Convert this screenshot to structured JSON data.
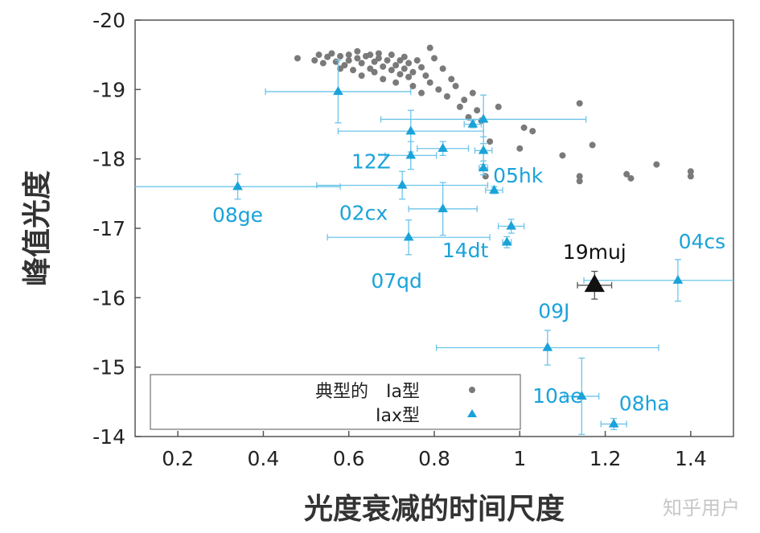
{
  "chart_data": {
    "type": "scatter",
    "xlabel": "光度衰减的时间尺度",
    "ylabel": "峰值光度",
    "xlim": [
      0.1,
      1.5
    ],
    "ylim": [
      -14,
      -20
    ],
    "y_axis_inverted": true,
    "x_ticks": [
      {
        "value": 0.2,
        "label": "0.2"
      },
      {
        "value": 0.4,
        "label": "0.4"
      },
      {
        "value": 0.6,
        "label": "0.6"
      },
      {
        "value": 0.8,
        "label": "0.8"
      },
      {
        "value": 1.0,
        "label": "1"
      },
      {
        "value": 1.2,
        "label": "1.2"
      },
      {
        "value": 1.4,
        "label": "1.4"
      }
    ],
    "y_ticks": [
      {
        "value": -20,
        "label": "-20"
      },
      {
        "value": -19,
        "label": "-19"
      },
      {
        "value": -18,
        "label": "-18"
      },
      {
        "value": -17,
        "label": "-17"
      },
      {
        "value": -16,
        "label": "-16"
      },
      {
        "value": -15,
        "label": "-15"
      },
      {
        "value": -14,
        "label": "-14"
      }
    ],
    "grid": false,
    "legend": {
      "placement": "bottom-left",
      "entries": [
        {
          "label": "典型的　Ia型",
          "marker": "dot",
          "color": "#7a7a7a"
        },
        {
          "label": "Iax型",
          "marker": "triangle",
          "color": "#1aa3d9"
        }
      ]
    },
    "series": [
      {
        "name": "典型的　Ia型",
        "marker": "dot",
        "color": "#7a7a7a",
        "points": [
          [
            0.48,
            -19.45
          ],
          [
            0.52,
            -19.42
          ],
          [
            0.53,
            -19.5
          ],
          [
            0.54,
            -19.38
          ],
          [
            0.55,
            -19.47
          ],
          [
            0.56,
            -19.52
          ],
          [
            0.57,
            -19.4
          ],
          [
            0.58,
            -19.3
          ],
          [
            0.58,
            -19.48
          ],
          [
            0.59,
            -19.35
          ],
          [
            0.6,
            -19.5
          ],
          [
            0.6,
            -19.42
          ],
          [
            0.61,
            -19.28
          ],
          [
            0.62,
            -19.45
          ],
          [
            0.62,
            -19.55
          ],
          [
            0.63,
            -19.38
          ],
          [
            0.63,
            -19.2
          ],
          [
            0.64,
            -19.48
          ],
          [
            0.65,
            -19.3
          ],
          [
            0.65,
            -19.5
          ],
          [
            0.66,
            -19.4
          ],
          [
            0.66,
            -19.25
          ],
          [
            0.67,
            -19.45
          ],
          [
            0.67,
            -19.52
          ],
          [
            0.68,
            -19.33
          ],
          [
            0.68,
            -19.15
          ],
          [
            0.69,
            -19.42
          ],
          [
            0.7,
            -19.28
          ],
          [
            0.7,
            -19.5
          ],
          [
            0.71,
            -19.35
          ],
          [
            0.71,
            -19.1
          ],
          [
            0.72,
            -19.42
          ],
          [
            0.72,
            -19.22
          ],
          [
            0.73,
            -19.3
          ],
          [
            0.73,
            -19.47
          ],
          [
            0.74,
            -19.18
          ],
          [
            0.74,
            -19.38
          ],
          [
            0.75,
            -19.25
          ],
          [
            0.75,
            -19.05
          ],
          [
            0.76,
            -19.42
          ],
          [
            0.77,
            -18.95
          ],
          [
            0.77,
            -19.32
          ],
          [
            0.78,
            -19.2
          ],
          [
            0.79,
            -19.6
          ],
          [
            0.79,
            -19.1
          ],
          [
            0.8,
            -19.45
          ],
          [
            0.81,
            -19.0
          ],
          [
            0.82,
            -19.3
          ],
          [
            0.83,
            -18.9
          ],
          [
            0.84,
            -19.15
          ],
          [
            0.85,
            -19.05
          ],
          [
            0.86,
            -18.75
          ],
          [
            0.87,
            -18.85
          ],
          [
            0.88,
            -18.6
          ],
          [
            0.89,
            -18.95
          ],
          [
            0.9,
            -18.7
          ],
          [
            0.91,
            -18.55
          ],
          [
            0.93,
            -18.25
          ],
          [
            0.95,
            -18.75
          ],
          [
            0.92,
            -17.75
          ],
          [
            1.0,
            -18.15
          ],
          [
            1.01,
            -18.45
          ],
          [
            1.03,
            -18.4
          ],
          [
            1.1,
            -18.05
          ],
          [
            1.14,
            -18.8
          ],
          [
            1.14,
            -17.75
          ],
          [
            1.14,
            -17.68
          ],
          [
            1.17,
            -18.2
          ],
          [
            1.25,
            -17.78
          ],
          [
            1.26,
            -17.72
          ],
          [
            1.32,
            -17.92
          ],
          [
            1.4,
            -17.82
          ],
          [
            1.4,
            -17.75
          ]
        ]
      },
      {
        "name": "Iax型",
        "marker": "triangle",
        "color": "#1aa3d9",
        "points": [
          {
            "x": 0.34,
            "y": -17.6,
            "xerr": [
              0.24,
              0.24
            ],
            "yerr": [
              0.18,
              0.18
            ],
            "label": "08ge"
          },
          {
            "x": 0.575,
            "y": -18.97,
            "xerr": [
              0.17,
              0.17
            ],
            "yerr": [
              0.45,
              0.45
            ]
          },
          {
            "x": 0.745,
            "y": -18.4,
            "xerr": [
              0.17,
              0.17
            ],
            "yerr": [
              0.3,
              0.3
            ]
          },
          {
            "x": 0.745,
            "y": -18.05,
            "xerr": [
              0.06,
              0.06
            ],
            "yerr": [
              0.2,
              0.2
            ],
            "label": "12Z"
          },
          {
            "x": 0.82,
            "y": -18.15,
            "xerr": [
              0.06,
              0.06
            ],
            "yerr": [
              0.1,
              0.1
            ]
          },
          {
            "x": 0.89,
            "y": -18.5,
            "xerr": [
              0.02,
              0.02
            ],
            "yerr": [
              0.05,
              0.05
            ]
          },
          {
            "x": 0.915,
            "y": -18.57,
            "xerr": [
              0.24,
              0.24
            ],
            "yerr": [
              0.35,
              0.35
            ]
          },
          {
            "x": 0.915,
            "y": -18.12,
            "xerr": [
              0.02,
              0.02
            ],
            "yerr": [
              0.2,
              0.2
            ]
          },
          {
            "x": 0.915,
            "y": -17.87,
            "xerr": [
              0.01,
              0.01
            ],
            "yerr": [
              0.1,
              0.1
            ],
            "label": "05hk"
          },
          {
            "x": 0.94,
            "y": -17.55,
            "xerr": [
              0.02,
              0.02
            ],
            "yerr": [
              0.05,
              0.05
            ]
          },
          {
            "x": 0.725,
            "y": -17.62,
            "xerr": [
              0.2,
              0.2
            ],
            "yerr": [
              0.2,
              0.2
            ],
            "label": "02cx"
          },
          {
            "x": 0.82,
            "y": -17.28,
            "xerr": [
              0.08,
              0.08
            ],
            "yerr": [
              0.38,
              0.38
            ],
            "label": "14dt"
          },
          {
            "x": 0.74,
            "y": -16.87,
            "xerr": [
              0.19,
              0.19
            ],
            "yerr": [
              0.25,
              0.25
            ],
            "label": "07qd"
          },
          {
            "x": 0.98,
            "y": -17.03,
            "xerr": [
              0.03,
              0.03
            ],
            "yerr": [
              0.1,
              0.1
            ]
          },
          {
            "x": 0.97,
            "y": -16.8,
            "xerr": [
              0.01,
              0.01
            ],
            "yerr": [
              0.08,
              0.08
            ]
          },
          {
            "x": 1.37,
            "y": -16.25,
            "xerr": [
              0.22,
              0.2
            ],
            "yerr": [
              0.3,
              0.3
            ],
            "label": "04cs"
          },
          {
            "x": 1.065,
            "y": -15.28,
            "xerr": [
              0.26,
              0.26
            ],
            "yerr": [
              0.25,
              0.25
            ],
            "label": "09J"
          },
          {
            "x": 1.145,
            "y": -14.58,
            "xerr": [
              0.04,
              0.04
            ],
            "yerr": [
              0.55,
              0.55
            ],
            "label": "10ae"
          },
          {
            "x": 1.22,
            "y": -14.18,
            "xerr": [
              0.03,
              0.03
            ],
            "yerr": [
              0.08,
              0.08
            ],
            "label": "08ha"
          }
        ]
      },
      {
        "name": "19muj",
        "marker": "triangle-large",
        "color": "#111111",
        "points": [
          {
            "x": 1.175,
            "y": -16.18,
            "xerr": [
              0.04,
              0.04
            ],
            "yerr": [
              0.2,
              0.2
            ],
            "label": "19muj"
          }
        ]
      }
    ]
  },
  "watermark": "知乎用户"
}
